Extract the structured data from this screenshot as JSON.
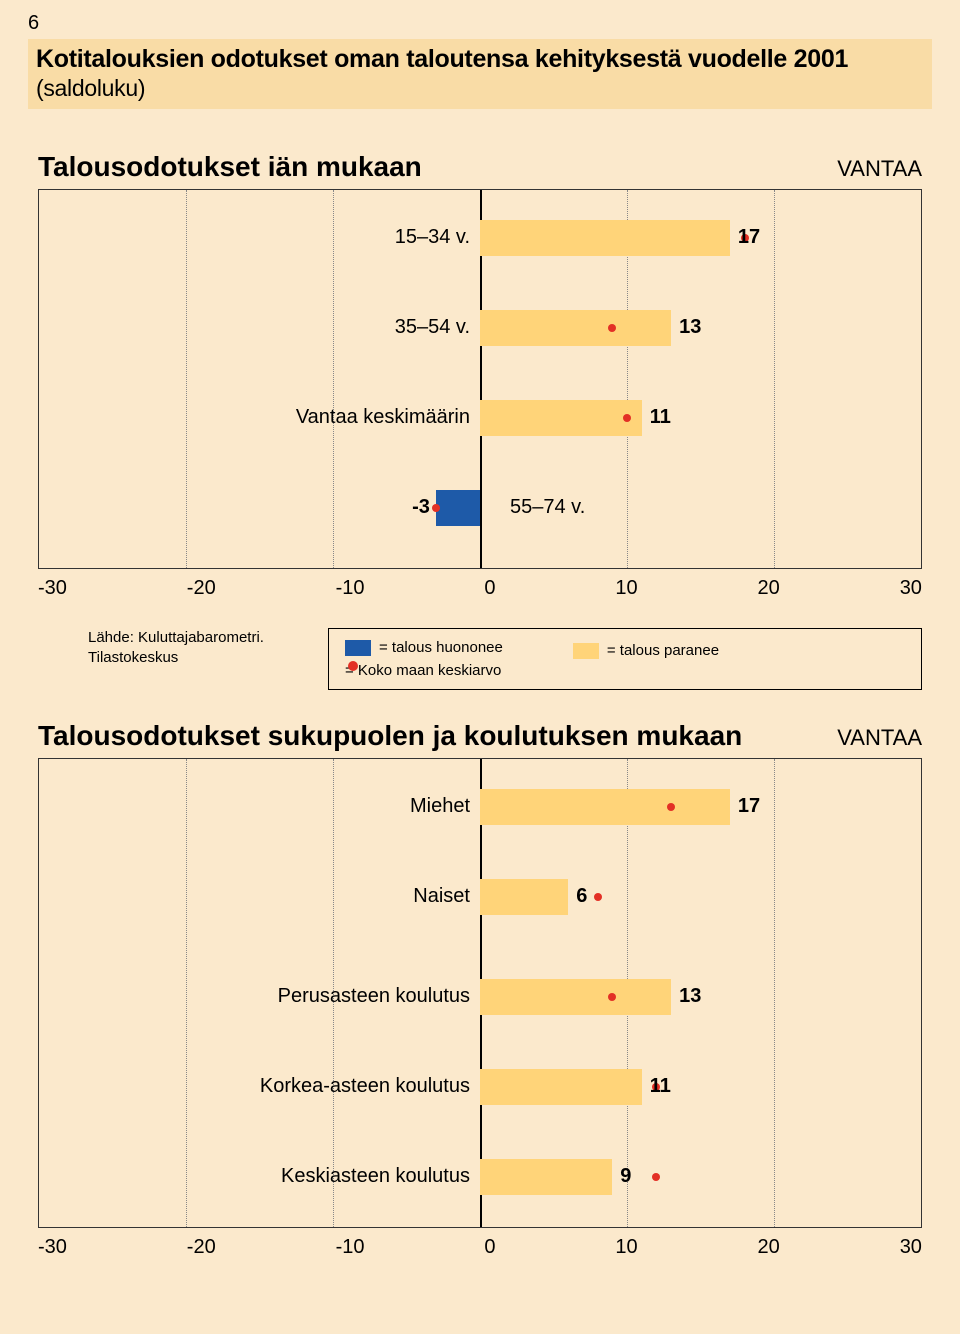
{
  "page_number": "6",
  "background_color": "#fbe9cc",
  "title_band_bg": "#f9dca6",
  "title_main": "Kotitalouksien odotukset oman taloutensa kehityksestä vuodelle 2001",
  "title_saldo": "(saldoluku)",
  "chart1": {
    "title": "Talousodotukset iän mukaan",
    "region": "VANTAA",
    "xmin": -30,
    "xmax": 30,
    "ticks": [
      "-30",
      "-20",
      "-10",
      "0",
      "10",
      "20",
      "30"
    ],
    "grid_positions_pct": [
      16.67,
      33.33,
      50,
      66.67,
      83.33
    ],
    "zero_pct": 50,
    "rows": [
      {
        "label": "15–34 v.",
        "value": 17,
        "dot": 18,
        "label_side": "left"
      },
      {
        "label": "35–54 v.",
        "value": 13,
        "dot": 9,
        "label_side": "left"
      },
      {
        "label": "Vantaa keskimäärin",
        "value": 11,
        "dot": 10,
        "label_side": "left"
      },
      {
        "label": "55–74 v.",
        "value": -3,
        "dot": -3,
        "label_side": "right",
        "negative": true,
        "neg_val_label": "-3"
      }
    ],
    "bar_color_pos": "#ffd479",
    "bar_color_neg": "#1e5aa8",
    "dot_color": "#e33025"
  },
  "source": {
    "line1": "Lähde: Kuluttajabarometri.",
    "line2": "Tilastokeskus"
  },
  "legend": {
    "huononee": "= talous huononee",
    "paranee": "= talous paranee",
    "koko": "= Koko maan keskiarvo"
  },
  "chart2": {
    "title": "Talousodotukset sukupuolen ja koulutuksen mukaan",
    "region": "VANTAA",
    "xmin": -30,
    "xmax": 30,
    "ticks": [
      "-30",
      "-20",
      "-10",
      "0",
      "10",
      "20",
      "30"
    ],
    "grid_positions_pct": [
      16.67,
      33.33,
      50,
      66.67,
      83.33
    ],
    "zero_pct": 50,
    "rows": [
      {
        "label": "Miehet",
        "value": 17,
        "dot": 13
      },
      {
        "label": "Naiset",
        "value": 6,
        "dot": 8
      },
      {
        "label": "Perusasteen koulutus",
        "value": 13,
        "dot": 9
      },
      {
        "label": "Korkea-asteen koulutus",
        "value": 11,
        "dot": 12
      },
      {
        "label": "Keskiasteen koulutus",
        "value": 9,
        "dot": 12
      }
    ]
  }
}
